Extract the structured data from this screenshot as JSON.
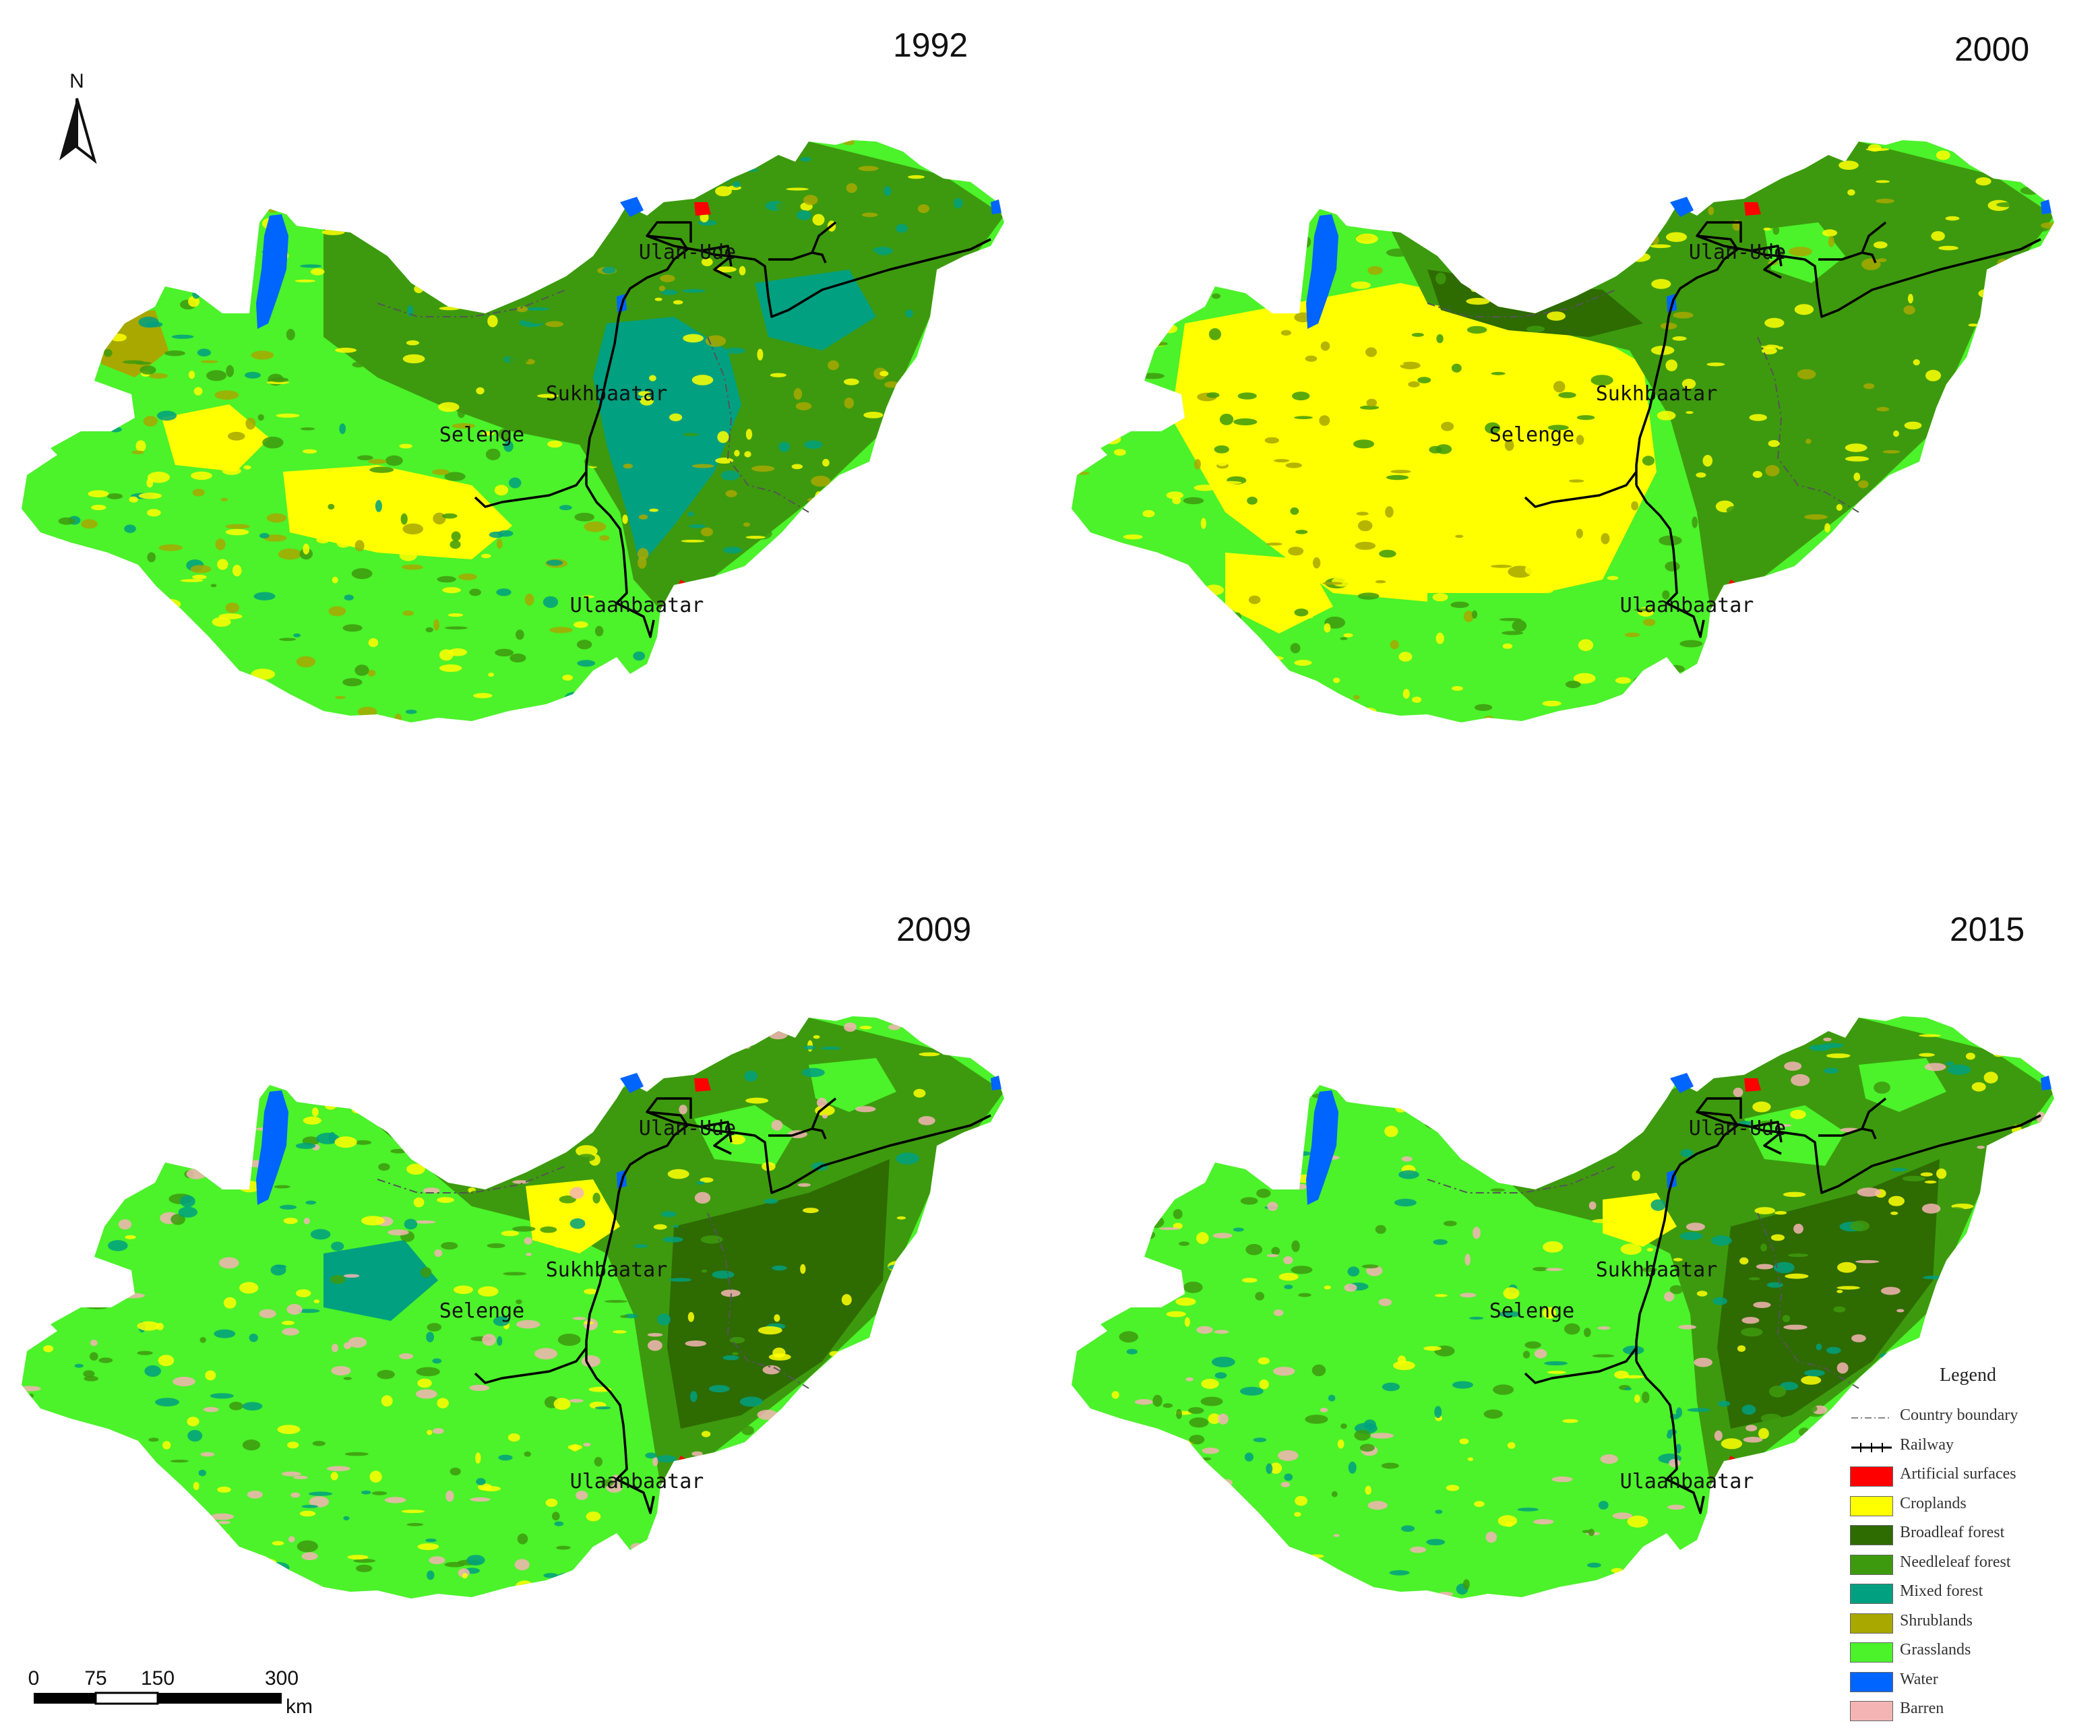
{
  "maps": [
    {
      "year": "1992",
      "variant": "y1992",
      "labels": {
        "ulan_ude": "Ulan-Ude",
        "sukhbaatar": "Sukhbaatar",
        "selenge": "Selenge",
        "ulaanbaatar": "Ulaanbaatar"
      }
    },
    {
      "year": "2000",
      "variant": "y2000",
      "labels": {
        "ulan_ude": "Ulan-Ude",
        "sukhbaatar": "Sukhbaatar",
        "selenge": "Selenge",
        "ulaanbaatar": "Ulaanbaatar"
      }
    },
    {
      "year": "2009",
      "variant": "y2009",
      "labels": {
        "ulan_ude": "Ulan-Ude",
        "sukhbaatar": "Sukhbaatar",
        "selenge": "Selenge",
        "ulaanbaatar": "Ulaanbaatar"
      }
    },
    {
      "year": "2015",
      "variant": "y2015",
      "labels": {
        "ulan_ude": "Ulan-Ude",
        "sukhbaatar": "Sukhbaatar",
        "selenge": "Selenge",
        "ulaanbaatar": "Ulaanbaatar"
      }
    }
  ],
  "north_arrow": {
    "label": "N"
  },
  "scale_bar": {
    "ticks": [
      "0",
      "75",
      "150",
      "300"
    ],
    "unit": "km"
  },
  "legend": {
    "title": "Legend",
    "items": [
      {
        "label": "Country boundary",
        "kind": "boundary",
        "color": "#888888"
      },
      {
        "label": "Railway",
        "kind": "railway",
        "color": "#000000"
      },
      {
        "label": "Artificial surfaces",
        "kind": "fill",
        "color": "#ff0000"
      },
      {
        "label": "Croplands",
        "kind": "fill",
        "color": "#ffff00"
      },
      {
        "label": "Broadleaf forest",
        "kind": "fill",
        "color": "#2e6b00"
      },
      {
        "label": "Needleleaf forest",
        "kind": "fill",
        "color": "#3d9a0e"
      },
      {
        "label": "Mixed forest",
        "kind": "fill",
        "color": "#00a080"
      },
      {
        "label": "Shrublands",
        "kind": "fill",
        "color": "#a8a800"
      },
      {
        "label": "Grasslands",
        "kind": "fill",
        "color": "#4cf22a"
      },
      {
        "label": "Water",
        "kind": "fill",
        "color": "#0064ff"
      },
      {
        "label": "Barren",
        "kind": "fill",
        "color": "#f4b4b4"
      }
    ]
  }
}
